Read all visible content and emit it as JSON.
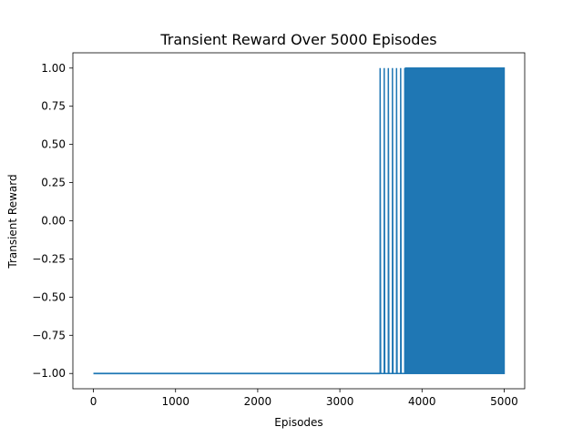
{
  "chart_data": {
    "type": "line",
    "title": "Transient Reward Over 5000 Episodes",
    "xlabel": "Episodes",
    "ylabel": "Transient Reward",
    "xlim": [
      -250,
      5250
    ],
    "ylim": [
      -1.1,
      1.1
    ],
    "grid": false,
    "legend": "none",
    "xticks": [
      0,
      1000,
      2000,
      3000,
      4000,
      5000
    ],
    "xtick_labels": [
      "0",
      "1000",
      "2000",
      "3000",
      "4000",
      "5000"
    ],
    "yticks": [
      1.0,
      0.75,
      0.5,
      0.25,
      0.0,
      -0.25,
      -0.5,
      -0.75,
      -1.0
    ],
    "ytick_labels": [
      "1.00",
      "0.75",
      "0.50",
      "0.25",
      "0.00",
      "−0.25",
      "−0.50",
      "−0.75",
      "−1.00"
    ],
    "series": [
      {
        "color": "#1f77b4",
        "segments": [
          {
            "x_start": 0,
            "x_end": 3490,
            "pattern": "constant",
            "value": -1.0
          },
          {
            "x_start": 3490,
            "x_end": 3800,
            "pattern": "sparse_spikes",
            "low": -1.0,
            "high": 1.0,
            "spike_x": [
              3490,
              3540,
              3590,
              3640,
              3690,
              3740,
              3790
            ]
          },
          {
            "x_start": 3800,
            "x_end": 5000,
            "pattern": "dense_oscillation",
            "low": -1.0,
            "high": 1.0
          }
        ]
      }
    ],
    "colors": {
      "line": "#1f77b4",
      "axes": "#000000",
      "background": "#ffffff"
    }
  }
}
